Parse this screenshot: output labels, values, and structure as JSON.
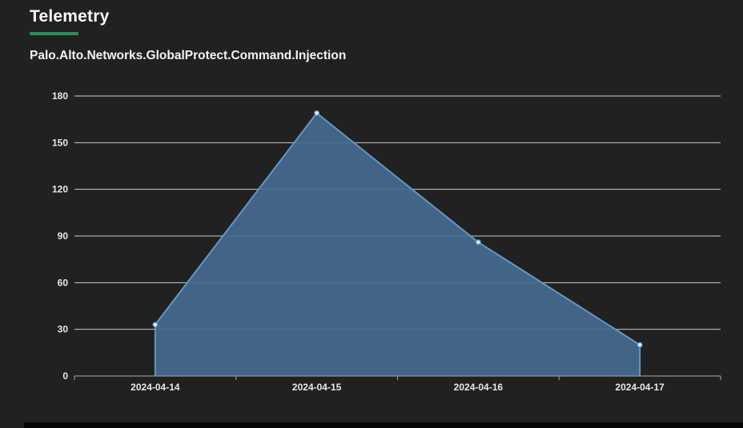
{
  "page": {
    "title": "Telemetry",
    "background_color": "#212121",
    "accent_underline_color": "#2e8b5e"
  },
  "chart_data": {
    "type": "area",
    "title": "Palo.Alto.Networks.GlobalProtect.Command.Injection",
    "categories": [
      "2024-04-14",
      "2024-04-15",
      "2024-04-16",
      "2024-04-17"
    ],
    "series": [
      {
        "name": "Palo.Alto.Networks.GlobalProtect.Command.Injection",
        "values": [
          33,
          169,
          86,
          20
        ]
      }
    ],
    "xlabel": "",
    "ylabel": "",
    "ylim": [
      0,
      180
    ],
    "yticks": [
      0,
      30,
      60,
      90,
      120,
      150,
      180
    ],
    "grid": true,
    "legend_position": "none",
    "colors": {
      "area_fill": "#456a90",
      "area_stroke": "#6397c7",
      "marker_fill": "#e9f3fc",
      "marker_stroke": "#5d94c6",
      "gridline": "#c9ced3",
      "axis_line": "#8f9398",
      "tick_label": "#e9e9e9"
    }
  }
}
